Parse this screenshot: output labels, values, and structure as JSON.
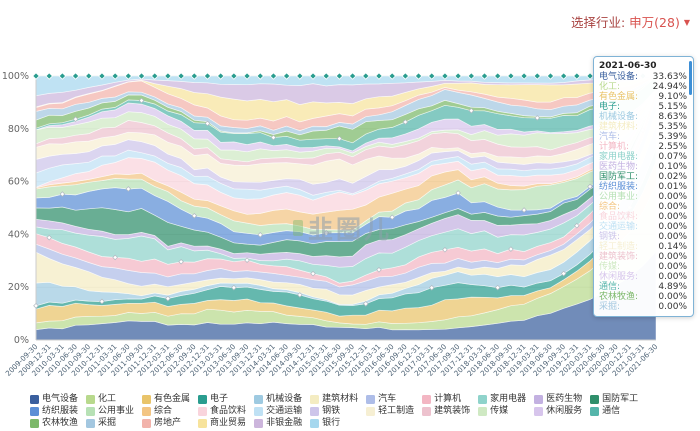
{
  "header": {
    "filter_label": "选择行业:",
    "filter_value": "申万(28)",
    "caret": "▼"
  },
  "watermark": "韭圈儿",
  "tooltip": {
    "date": "2021-06-30",
    "items": [
      {
        "name": "电气设备",
        "value": "33.63%"
      },
      {
        "name": "化工",
        "value": "24.94%"
      },
      {
        "name": "有色金属",
        "value": "9.10%"
      },
      {
        "name": "电子",
        "value": "5.15%"
      },
      {
        "name": "机械设备",
        "value": "8.63%"
      },
      {
        "name": "建筑材料",
        "value": "5.35%"
      },
      {
        "name": "汽车",
        "value": "5.39%"
      },
      {
        "name": "计算机",
        "value": "2.55%"
      },
      {
        "name": "家用电器",
        "value": "0.07%"
      },
      {
        "name": "医药生物",
        "value": "0.10%"
      },
      {
        "name": "国防军工",
        "value": "0.02%"
      },
      {
        "name": "纺织服装",
        "value": "0.01%"
      },
      {
        "name": "公用事业",
        "value": "0.00%"
      },
      {
        "name": "综合",
        "value": "0.00%"
      },
      {
        "name": "食品饮料",
        "value": "0.00%"
      },
      {
        "name": "交通运输",
        "value": "0.00%"
      },
      {
        "name": "钢铁",
        "value": "0.00%"
      },
      {
        "name": "轻工制造",
        "value": "0.14%"
      },
      {
        "name": "建筑装饰",
        "value": "0.00%"
      },
      {
        "name": "传媒",
        "value": "0.00%"
      },
      {
        "name": "休闲服务",
        "value": "0.00%"
      },
      {
        "name": "通信",
        "value": "4.89%"
      },
      {
        "name": "农林牧渔",
        "value": "0.00%"
      },
      {
        "name": "采掘",
        "value": "0.00%"
      }
    ]
  },
  "chart_data": {
    "type": "area",
    "stacked": true,
    "percent": true,
    "title": "",
    "xlabel": "",
    "ylabel": "",
    "ylim": [
      0,
      100
    ],
    "y_ticks": [
      "0%",
      "20%",
      "40%",
      "60%",
      "80%",
      "100%"
    ],
    "legend_position": "bottom",
    "x": [
      "2009-09-30",
      "2009-12-31",
      "2010-03-31",
      "2010-06-30",
      "2010-09-30",
      "2010-12-31",
      "2011-03-31",
      "2011-06-30",
      "2011-09-30",
      "2011-12-31",
      "2012-03-31",
      "2012-06-30",
      "2012-09-30",
      "2012-12-31",
      "2013-03-31",
      "2013-06-30",
      "2013-09-30",
      "2013-12-31",
      "2014-03-31",
      "2014-06-30",
      "2014-09-30",
      "2014-12-31",
      "2015-03-31",
      "2015-06-30",
      "2015-09-30",
      "2015-12-31",
      "2016-03-31",
      "2016-06-30",
      "2016-09-30",
      "2016-12-31",
      "2017-03-31",
      "2017-06-30",
      "2017-09-30",
      "2017-12-31",
      "2018-03-31",
      "2018-06-30",
      "2018-09-30",
      "2018-12-31",
      "2019-03-31",
      "2019-06-30",
      "2019-09-30",
      "2019-12-31",
      "2020-03-31",
      "2020-06-30",
      "2020-09-30",
      "2020-12-31",
      "2021-03-31",
      "2021-06-30"
    ],
    "series": [
      {
        "name": "电气设备",
        "color": "#3a5f9e",
        "value_2021_06_30": 33.63
      },
      {
        "name": "化工",
        "color": "#b8d98d",
        "value_2021_06_30": 24.94
      },
      {
        "name": "有色金属",
        "color": "#e9c46a",
        "value_2021_06_30": 9.1
      },
      {
        "name": "电子",
        "color": "#2a9d8f",
        "value_2021_06_30": 5.15
      },
      {
        "name": "机械设备",
        "color": "#9ecae1",
        "value_2021_06_30": 8.63
      },
      {
        "name": "建筑材料",
        "color": "#f4ecc2",
        "value_2021_06_30": 5.35
      },
      {
        "name": "汽车",
        "color": "#aebde8",
        "value_2021_06_30": 5.39
      },
      {
        "name": "计算机",
        "color": "#f3b6c3",
        "value_2021_06_30": 2.55
      },
      {
        "name": "家用电器",
        "color": "#8fd3cb",
        "value_2021_06_30": 0.07
      },
      {
        "name": "医药生物",
        "color": "#c3b1e1",
        "value_2021_06_30": 0.1
      },
      {
        "name": "国防军工",
        "color": "#2f8f6b",
        "value_2021_06_30": 0.02
      },
      {
        "name": "纺织服装",
        "color": "#5c8fd6",
        "value_2021_06_30": 0.01
      },
      {
        "name": "公用事业",
        "color": "#b7e1b5",
        "value_2021_06_30": 0.0
      },
      {
        "name": "综合",
        "color": "#f3c583",
        "value_2021_06_30": 0.0
      },
      {
        "name": "食品饮料",
        "color": "#f9d4dc",
        "value_2021_06_30": 0.0
      },
      {
        "name": "交通运输",
        "color": "#bfe1f4",
        "value_2021_06_30": 0.0
      },
      {
        "name": "钢铁",
        "color": "#cdc5ea",
        "value_2021_06_30": 0.0
      },
      {
        "name": "轻工制造",
        "color": "#f6efd3",
        "value_2021_06_30": 0.14
      },
      {
        "name": "建筑装饰",
        "color": "#edc2ce",
        "value_2021_06_30": 0.0
      },
      {
        "name": "传媒",
        "color": "#cfe9c3",
        "value_2021_06_30": 0.0
      },
      {
        "name": "休闲服务",
        "color": "#d7c5ec",
        "value_2021_06_30": 0.0
      },
      {
        "name": "通信",
        "color": "#55b5aa",
        "value_2021_06_30": 4.89
      },
      {
        "name": "农林牧渔",
        "color": "#7cb86a",
        "value_2021_06_30": 0.0
      },
      {
        "name": "采掘",
        "color": "#a3c7e0",
        "value_2021_06_30": 0.0
      },
      {
        "name": "房地产",
        "color": "#f2b3ab",
        "value_2021_06_30": null
      },
      {
        "name": "商业贸易",
        "color": "#f7e39c",
        "value_2021_06_30": null
      },
      {
        "name": "非银金融",
        "color": "#ccb5dc",
        "value_2021_06_30": null
      },
      {
        "name": "银行",
        "color": "#a6d7ee",
        "value_2021_06_30": null
      }
    ]
  }
}
